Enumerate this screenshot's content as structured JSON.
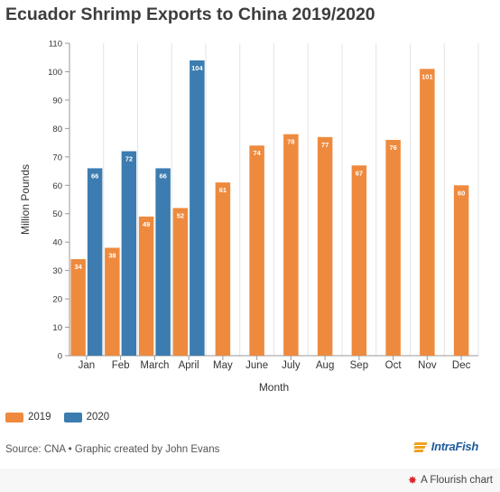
{
  "title": "Ecuador Shrimp Exports to China 2019/2020",
  "legend": [
    {
      "label": "2019",
      "color": "#ee8a3e"
    },
    {
      "label": "2020",
      "color": "#3c7cb0"
    }
  ],
  "source": "Source: CNA • Graphic created by John Evans",
  "logo_text": "IntraFish",
  "flourish_label": "A Flourish chart",
  "chart_data": {
    "type": "bar",
    "title": "Ecuador Shrimp Exports to China 2019/2020",
    "xlabel": "Month",
    "ylabel": "Million Pounds",
    "ylim": [
      0,
      110
    ],
    "yticks": [
      0,
      10,
      20,
      30,
      40,
      50,
      60,
      70,
      80,
      90,
      100,
      110
    ],
    "categories": [
      "Jan",
      "Feb",
      "March",
      "April",
      "May",
      "June",
      "July",
      "Aug",
      "Sep",
      "Oct",
      "Nov",
      "Dec"
    ],
    "series": [
      {
        "name": "2019",
        "color": "#ee8a3e",
        "values": [
          34,
          38,
          49,
          52,
          61,
          74,
          78,
          77,
          67,
          76,
          101,
          60
        ]
      },
      {
        "name": "2020",
        "color": "#3c7cb0",
        "values": [
          66,
          72,
          66,
          104,
          null,
          null,
          null,
          null,
          null,
          null,
          null,
          null
        ]
      }
    ],
    "grid": "vertical",
    "legend_position": "bottom-left"
  }
}
